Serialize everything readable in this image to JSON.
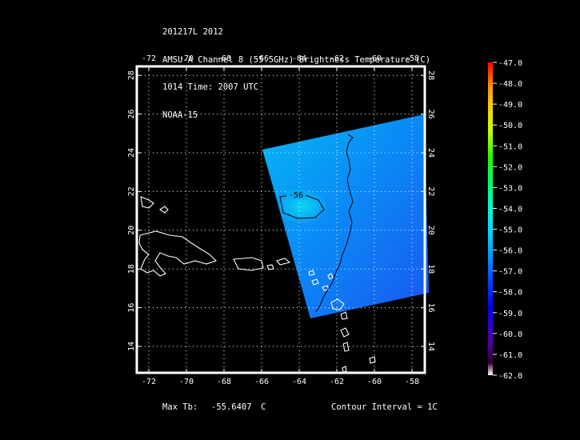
{
  "header": {
    "line1": "201217L 2012",
    "line2": "AMSU-A Channel 8 (55.5GHz) Brightness Temperature (C)",
    "line3": "1014 Time: 2007 UTC",
    "line4": "NOAA-15"
  },
  "map": {
    "lon_ticks": [
      "-72",
      "-70",
      "-68",
      "-66",
      "-64",
      "-62",
      "-60",
      "-58"
    ],
    "lat_ticks": [
      "14",
      "16",
      "18",
      "20",
      "22",
      "24",
      "26",
      "28"
    ],
    "contour_label": "-56",
    "grid": true
  },
  "colorbar": {
    "labels": [
      "-47.0",
      "-48.0",
      "-49.0",
      "-50.0",
      "-51.0",
      "-52.0",
      "-53.0",
      "-54.0",
      "-55.0",
      "-56.0",
      "-57.0",
      "-58.0",
      "-59.0",
      "-60.0",
      "-61.0",
      "-62.0"
    ],
    "colors": [
      "#ff0000",
      "#ff9900",
      "#f5d000",
      "#c8ff00",
      "#22ff00",
      "#00ff66",
      "#00ffcc",
      "#00d8ff",
      "#0099ff",
      "#0044ff",
      "#0000ee",
      "#3000cc",
      "#550099",
      "#500060",
      "#300030",
      "#ffffff"
    ]
  },
  "footer": {
    "max_label": "Max Tb:",
    "max_value": "-55.6407",
    "max_unit": "C",
    "contour_interval": "Contour Interval = 1C"
  }
}
